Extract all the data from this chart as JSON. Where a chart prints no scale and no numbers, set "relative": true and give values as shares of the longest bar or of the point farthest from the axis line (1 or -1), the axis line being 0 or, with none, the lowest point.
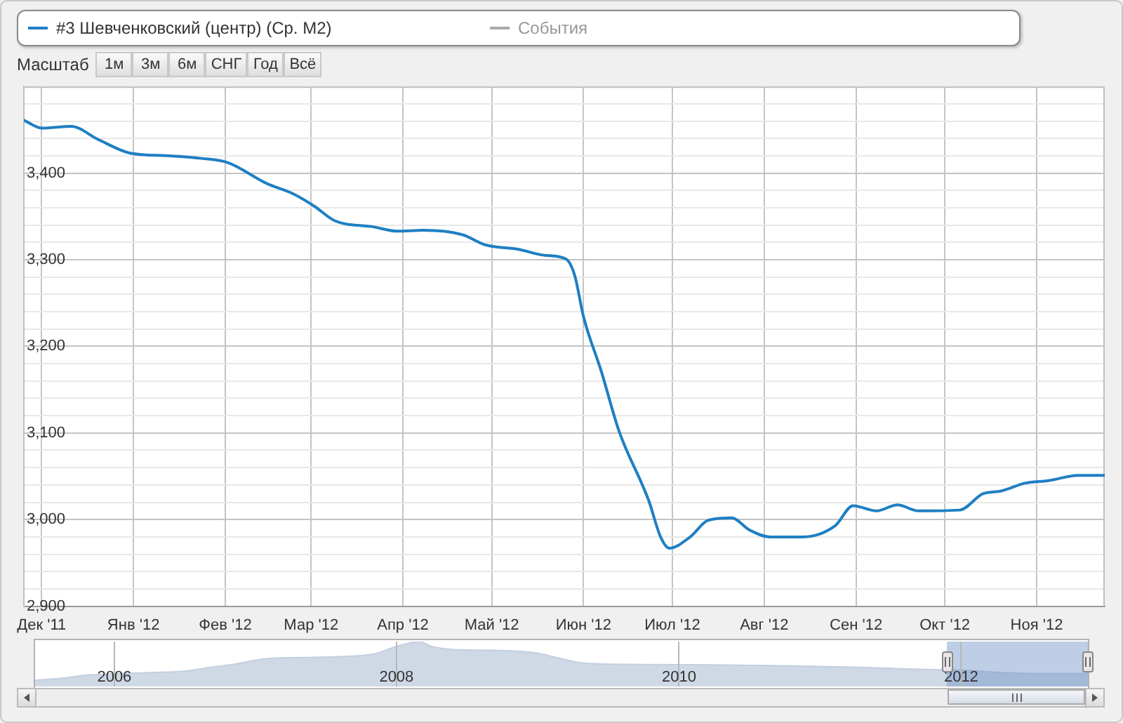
{
  "chart_data": [
    {
      "type": "line",
      "series": [
        {
          "name": "#3 Шевченковский (центр) (Ср. М2)",
          "color": "#1e7fc3",
          "x": [
            "2011-11-25",
            "2011-12-01",
            "2011-12-11",
            "2011-12-20",
            "2011-12-31",
            "2012-01-13",
            "2012-01-24",
            "2012-02-02",
            "2012-02-15",
            "2012-02-24",
            "2012-03-02",
            "2012-03-09",
            "2012-03-22",
            "2012-03-30",
            "2012-04-08",
            "2012-04-21",
            "2012-04-29",
            "2012-05-10",
            "2012-05-19",
            "2012-05-26",
            "2012-05-29",
            "2012-06-01",
            "2012-06-07",
            "2012-06-13",
            "2012-06-23",
            "2012-06-27",
            "2012-06-30",
            "2012-07-07",
            "2012-07-13",
            "2012-07-21",
            "2012-07-27",
            "2012-08-03",
            "2012-08-14",
            "2012-08-25",
            "2012-08-31",
            "2012-09-08",
            "2012-09-15",
            "2012-09-22",
            "2012-10-06",
            "2012-10-14",
            "2012-10-20",
            "2012-10-28",
            "2012-11-05",
            "2012-11-15",
            "2012-11-24"
          ],
          "values": [
            3461,
            3452,
            3454,
            3439,
            3423,
            3420,
            3417,
            3412,
            3388,
            3376,
            3362,
            3345,
            3338,
            3333,
            3334,
            3329,
            3317,
            3312,
            3305,
            3301,
            3282,
            3234,
            3171,
            3102,
            3022,
            2980,
            2967,
            2980,
            2999,
            3002,
            2988,
            2980,
            2980,
            2993,
            3016,
            3010,
            3017,
            3010,
            3011,
            3030,
            3033,
            3042,
            3045,
            3051,
            3051
          ]
        },
        {
          "name": "События",
          "color": "#aaaaaa"
        }
      ],
      "xlim": [
        "2011-11-25",
        "2012-11-24"
      ],
      "xticks": [
        {
          "value": "2011-12",
          "label": "Дек '11"
        },
        {
          "value": "2012-01",
          "label": "Янв '12"
        },
        {
          "value": "2012-02",
          "label": "Фев '12"
        },
        {
          "value": "2012-03",
          "label": "Мар '12"
        },
        {
          "value": "2012-04",
          "label": "Апр '12"
        },
        {
          "value": "2012-05",
          "label": "Май '12"
        },
        {
          "value": "2012-06",
          "label": "Июн '12"
        },
        {
          "value": "2012-07",
          "label": "Июл '12"
        },
        {
          "value": "2012-08",
          "label": "Авг '12"
        },
        {
          "value": "2012-09",
          "label": "Сен '12"
        },
        {
          "value": "2012-10",
          "label": "Окт '12"
        },
        {
          "value": "2012-11",
          "label": "Ноя '12"
        }
      ],
      "ylim": [
        2900,
        3500
      ],
      "yticks": [
        {
          "value": 2900,
          "label": "2,900"
        },
        {
          "value": 2920,
          "label": null
        },
        {
          "value": 2940,
          "label": null
        },
        {
          "value": 2960,
          "label": null
        },
        {
          "value": 2980,
          "label": null
        },
        {
          "value": 3000,
          "label": "3,000"
        },
        {
          "value": 3020,
          "label": null
        },
        {
          "value": 3040,
          "label": null
        },
        {
          "value": 3060,
          "label": null
        },
        {
          "value": 3080,
          "label": null
        },
        {
          "value": 3100,
          "label": "3,100"
        },
        {
          "value": 3120,
          "label": null
        },
        {
          "value": 3140,
          "label": null
        },
        {
          "value": 3160,
          "label": null
        },
        {
          "value": 3180,
          "label": null
        },
        {
          "value": 3200,
          "label": "3,200"
        },
        {
          "value": 3220,
          "label": null
        },
        {
          "value": 3240,
          "label": null
        },
        {
          "value": 3260,
          "label": null
        },
        {
          "value": 3280,
          "label": null
        },
        {
          "value": 3300,
          "label": "3,300"
        },
        {
          "value": 3320,
          "label": null
        },
        {
          "value": 3340,
          "label": null
        },
        {
          "value": 3360,
          "label": null
        },
        {
          "value": 3380,
          "label": null
        },
        {
          "value": 3400,
          "label": "3,400"
        },
        {
          "value": 3420,
          "label": null
        },
        {
          "value": 3440,
          "label": null
        },
        {
          "value": 3460,
          "label": null
        },
        {
          "value": 3480,
          "label": null
        },
        {
          "value": 3500,
          "label": null
        }
      ],
      "grid": true,
      "legend": "top",
      "marker": "none",
      "annotations": [
        "Масштаб",
        "1м",
        "3м",
        "6м",
        "СНГ",
        "Год",
        "Всё"
      ]
    },
    {
      "type": "area",
      "relative": true,
      "color": "#c3cfe0",
      "x": [
        "2005-06-10",
        "2005-08",
        "2005-11",
        "2006-01",
        "2006-04",
        "2006-07",
        "2006-09",
        "2006-11",
        "2007-02",
        "2007-06",
        "2007-11",
        "2008-01",
        "2008-03",
        "2008-04",
        "2008-06",
        "2008-10",
        "2009-01",
        "2009-03",
        "2009-05",
        "2009-10",
        "2010-04",
        "2010-10",
        "2011-04",
        "2011-10",
        "2011-12-15",
        "2012-07",
        "2012-11-24"
      ],
      "values": [
        0.14,
        0.17,
        0.26,
        0.28,
        0.31,
        0.34,
        0.42,
        0.49,
        0.62,
        0.65,
        0.72,
        0.89,
        1,
        0.89,
        0.82,
        0.8,
        0.74,
        0.62,
        0.52,
        0.49,
        0.48,
        0.46,
        0.43,
        0.38,
        0.37,
        0.29,
        0.29
      ],
      "xlim": [
        "2005-06-10",
        "2012-11-24"
      ],
      "xticks": [
        "2006",
        "2008",
        "2010",
        "2012"
      ],
      "grid": "x",
      "bands": [
        {
          "axis": "x",
          "from": "2011-11-25",
          "to": "2012-11-24",
          "color": "#6f93c8"
        }
      ]
    }
  ]
}
